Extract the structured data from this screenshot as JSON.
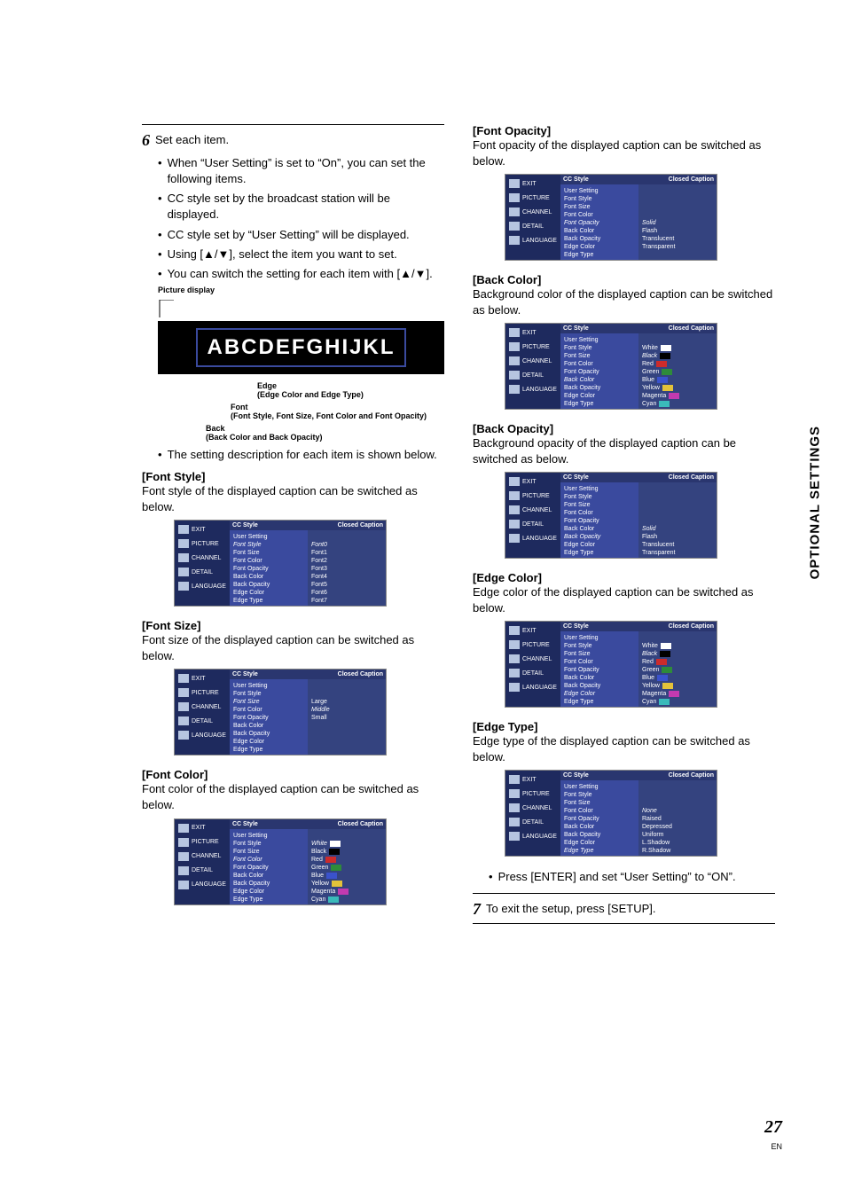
{
  "sideTab": "OPTIONAL SETTINGS",
  "pageNumber": "27",
  "pageLang": "EN",
  "left": {
    "step6_num": "6",
    "step6_text": "Set each item.",
    "b1": "When “User Setting” is set to “On”, you can set the following items.",
    "b2": "CC style set by the broadcast station will be displayed.",
    "b3": "CC style set by “User Setting” will be displayed.",
    "b4": "Using [▲/▼], select the item you want to set.",
    "b5": "You can switch the setting for each item with [▲/▼].",
    "picture_display_label": "Picture display",
    "pd_text": "ABCDEFGHIJKL",
    "anno_edge": "Edge",
    "anno_edge_sub": "(Edge Color and Edge Type)",
    "anno_font": "Font",
    "anno_font_sub": "(Font Style, Font Size, Font Color and Font Opacity)",
    "anno_back": "Back",
    "anno_back_sub": "(Back Color and Back Opacity)",
    "b6": "The setting description for each item is shown below.",
    "fontstyle_h": "[Font Style]",
    "fontstyle_t": "Font style of the displayed caption can be switched as below.",
    "fontsize_h": "[Font Size]",
    "fontsize_t": "Font size of the displayed caption can be switched as below.",
    "fontcolor_h": "[Font Color]",
    "fontcolor_t": "Font color of the displayed caption can be switched as below."
  },
  "right": {
    "fontop_h": "[Font Opacity]",
    "fontop_t": "Font opacity of the displayed caption can be switched as below.",
    "backcol_h": "[Back Color]",
    "backcol_t": "Background color of the displayed caption can be switched as below.",
    "backop_h": "[Back Opacity]",
    "backop_t": "Background opacity of the displayed caption can be switched as below.",
    "edgecol_h": "[Edge Color]",
    "edgecol_t": "Edge color of the displayed caption can be switched as below.",
    "edgetype_h": "[Edge Type]",
    "edgetype_t": "Edge type of the displayed caption can be switched as below.",
    "press_enter": "Press [ENTER] and set “User Setting” to “ON”.",
    "step7_num": "7",
    "step7_text": "To exit the setup, press [SETUP]."
  },
  "menu": {
    "cc_style": "CC Style",
    "closed_caption": "Closed Caption",
    "side": {
      "exit": "EXIT",
      "picture": "PICTURE",
      "channel": "CHANNEL",
      "detail": "DETAIL",
      "language": "LANGUAGE"
    },
    "items": {
      "user_setting": "User Setting",
      "font_style": "Font Style",
      "font_size": "Font Size",
      "font_color": "Font Color",
      "font_opacity": "Font Opacity",
      "back_color": "Back Color",
      "back_opacity": "Back Opacity",
      "edge_color": "Edge Color",
      "edge_type": "Edge Type"
    },
    "fontstyle_opts": [
      "Font0",
      "Font1",
      "Font2",
      "Font3",
      "Font4",
      "Font5",
      "Font6",
      "Font7"
    ],
    "fontsize_opts": [
      "Large",
      "Middle",
      "Small"
    ],
    "color_opts": [
      "White",
      "Black",
      "Red",
      "Green",
      "Blue",
      "Yellow",
      "Magenta",
      "Cyan"
    ],
    "opacity_opts": [
      "Solid",
      "Flash",
      "Translucent",
      "Transparent"
    ],
    "edgetype_opts": [
      "None",
      "Raised",
      "Depressed",
      "Uniform",
      "L.Shadow",
      "R.Shadow"
    ],
    "color_swatches": [
      "#ffffff",
      "#000000",
      "#cc2b2b",
      "#2e8b3a",
      "#3a52cc",
      "#e3c23a",
      "#c23ab0",
      "#3ababa"
    ]
  }
}
